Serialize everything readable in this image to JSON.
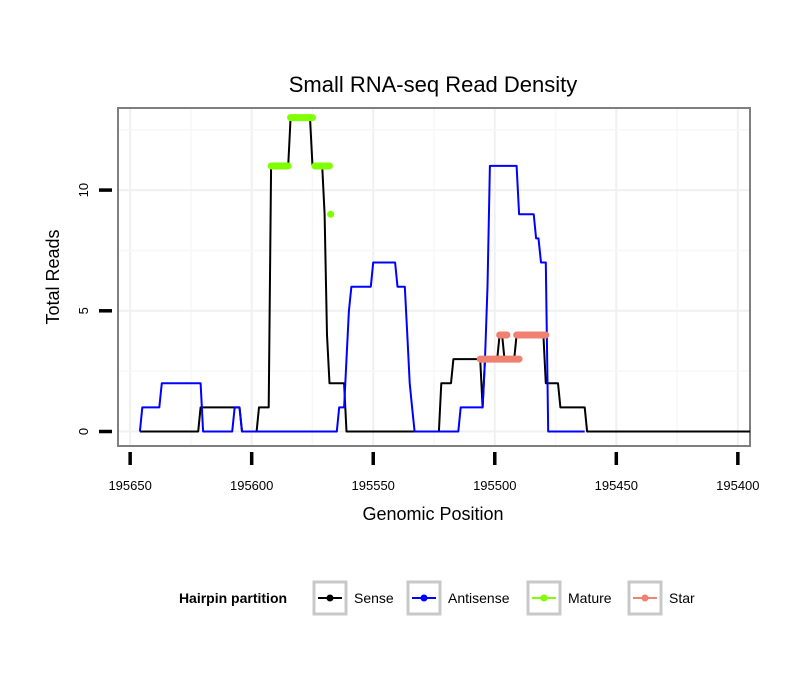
{
  "chart_data": {
    "type": "line",
    "title": "Small RNA-seq Read Density",
    "xlabel": "Genomic Position",
    "ylabel": "Total Reads",
    "x_reversed": true,
    "xlim": [
      195655,
      195395
    ],
    "ylim": [
      -0.6,
      13.4
    ],
    "x_ticks": [
      195650,
      195600,
      195550,
      195500,
      195450,
      195400
    ],
    "x_tick_labels": [
      "195650",
      "195600",
      "195550",
      "195500",
      "195450",
      "195400"
    ],
    "y_ticks": [
      0,
      5,
      10
    ],
    "y_tick_labels": [
      "0",
      "5",
      "10"
    ],
    "grid": true,
    "legend": {
      "title": "Hairpin partition",
      "position": "bottom",
      "entries": [
        {
          "name": "Sense",
          "color": "#000000"
        },
        {
          "name": "Antisense",
          "color": "#0000FF"
        },
        {
          "name": "Mature",
          "color": "#7FFF00"
        },
        {
          "name": "Star",
          "color": "#F08070"
        }
      ]
    },
    "series": [
      {
        "name": "Sense",
        "kind": "line",
        "color": "#000000",
        "points": [
          [
            195646,
            0
          ],
          [
            195622,
            0
          ],
          [
            195621,
            1
          ],
          [
            195605,
            1
          ],
          [
            195604,
            0
          ],
          [
            195598,
            0
          ],
          [
            195597,
            1
          ],
          [
            195593,
            1
          ],
          [
            195592,
            11
          ],
          [
            195585,
            11
          ],
          [
            195584,
            13
          ],
          [
            195576,
            13
          ],
          [
            195575,
            11
          ],
          [
            195571,
            11
          ],
          [
            195570,
            9
          ],
          [
            195569,
            4
          ],
          [
            195568,
            2
          ],
          [
            195562,
            2
          ],
          [
            195561,
            0
          ],
          [
            195523,
            0
          ],
          [
            195522,
            2
          ],
          [
            195518,
            2
          ],
          [
            195517,
            3
          ],
          [
            195506,
            3
          ],
          [
            195505,
            1
          ],
          [
            195504,
            3
          ],
          [
            195499,
            3
          ],
          [
            195498,
            4
          ],
          [
            195497,
            4
          ],
          [
            195496,
            3
          ],
          [
            195492,
            3
          ],
          [
            195491,
            4
          ],
          [
            195480,
            4
          ],
          [
            195479,
            2
          ],
          [
            195474,
            2
          ],
          [
            195473,
            1
          ],
          [
            195463,
            1
          ],
          [
            195462,
            0
          ],
          [
            195395,
            0
          ]
        ]
      },
      {
        "name": "Antisense",
        "kind": "line",
        "color": "#0000FF",
        "points": [
          [
            195646,
            0
          ],
          [
            195645,
            1
          ],
          [
            195638,
            1
          ],
          [
            195637,
            2
          ],
          [
            195621,
            2
          ],
          [
            195620,
            0
          ],
          [
            195608,
            0
          ],
          [
            195607,
            1
          ],
          [
            195605,
            1
          ],
          [
            195604,
            0
          ],
          [
            195565,
            0
          ],
          [
            195564,
            1
          ],
          [
            195562,
            1
          ],
          [
            195561,
            3
          ],
          [
            195560,
            5
          ],
          [
            195559,
            6
          ],
          [
            195551,
            6
          ],
          [
            195550,
            7
          ],
          [
            195541,
            7
          ],
          [
            195540,
            6
          ],
          [
            195537,
            6
          ],
          [
            195536,
            4
          ],
          [
            195535,
            2
          ],
          [
            195534,
            1
          ],
          [
            195533,
            0
          ],
          [
            195515,
            0
          ],
          [
            195514,
            1
          ],
          [
            195505,
            1
          ],
          [
            195504,
            3
          ],
          [
            195503,
            6
          ],
          [
            195502,
            11
          ],
          [
            195491,
            11
          ],
          [
            195490,
            9
          ],
          [
            195484,
            9
          ],
          [
            195483,
            8
          ],
          [
            195482,
            8
          ],
          [
            195481,
            7
          ],
          [
            195479,
            7
          ],
          [
            195478,
            0
          ],
          [
            195463,
            0
          ]
        ]
      },
      {
        "name": "Mature",
        "kind": "segments",
        "color": "#7FFF00",
        "segments": [
          [
            [
              195592,
              11
            ],
            [
              195585,
              11
            ]
          ],
          [
            [
              195584,
              13
            ],
            [
              195575,
              13
            ]
          ],
          [
            [
              195574,
              11
            ],
            [
              195568,
              11
            ]
          ],
          [
            [
              195567.5,
              9
            ],
            [
              195567.5,
              9
            ]
          ]
        ]
      },
      {
        "name": "Star",
        "kind": "segments",
        "color": "#F08070",
        "segments": [
          [
            [
              195506,
              3
            ],
            [
              195490,
              3
            ]
          ],
          [
            [
              195498,
              4
            ],
            [
              195495,
              4
            ]
          ],
          [
            [
              195491,
              4
            ],
            [
              195479,
              4
            ]
          ]
        ]
      }
    ]
  }
}
